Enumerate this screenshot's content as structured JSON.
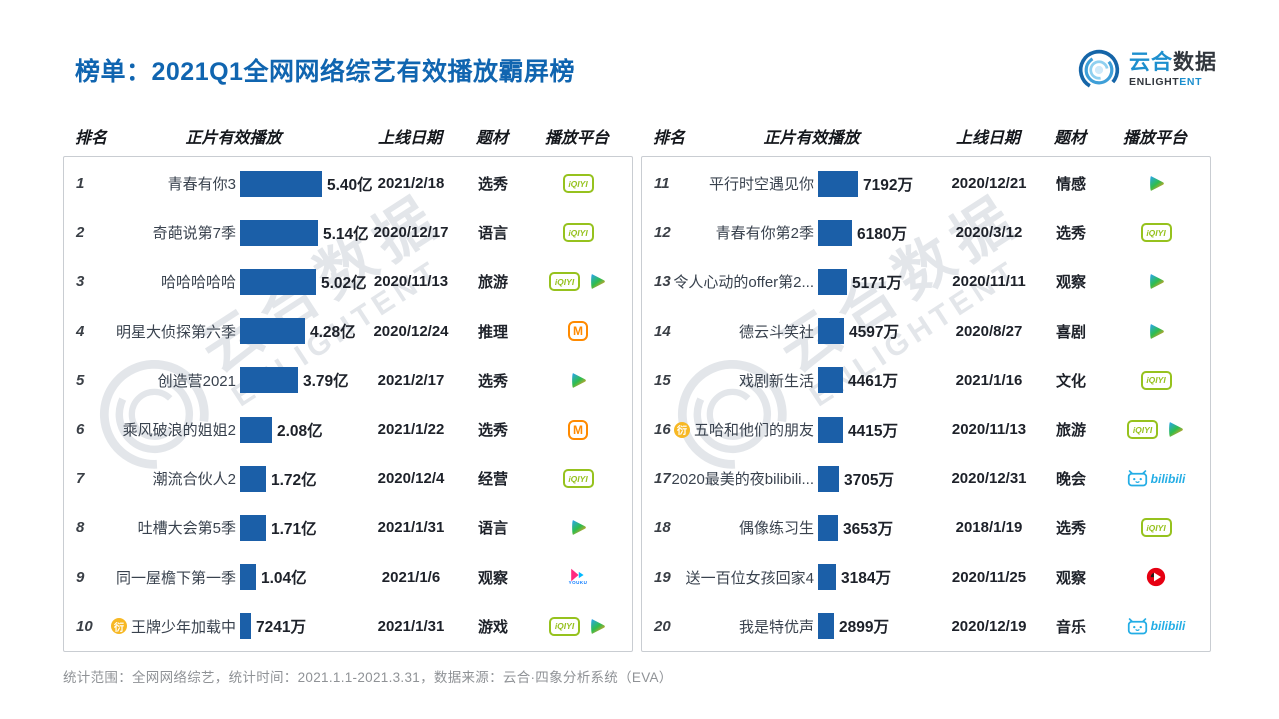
{
  "title": "榜单：2021Q1全网网络综艺有效播放霸屏榜",
  "footer": "统计范围：全网网络综艺，统计时间：2021.1.1-2021.3.31，数据来源：云合·四象分析系统（EVA）",
  "logo": {
    "cn_blue": "云合",
    "cn_dark": "数据",
    "en_dark": "ENLIGHT",
    "en_blue": "ENT"
  },
  "watermark": {
    "cn": "云合数据",
    "en": "ENLIGHTENT"
  },
  "columns": [
    "排名",
    "正片有效播放",
    "上线日期",
    "题材",
    "播放平台"
  ],
  "colors": {
    "title_blue": "#1065b0",
    "bar_blue": "#1b5fa8",
    "iqiyi_green": "#96c21e",
    "mgtv_orange": "#ff8a00",
    "youku_pink": "#ff2a7f",
    "bilibili_blue": "#23ade5",
    "badge_yellow": "#f7b824",
    "red_play": "#e60012",
    "watermark_gray": "#e3e6ea"
  },
  "chart_data": {
    "type": "bar",
    "title": "2021Q1全网网络综艺有效播放霸屏榜",
    "value_unit": "万 (1亿 = 10000万)",
    "panels": [
      {
        "rows": [
          {
            "rank": "1",
            "badge": "",
            "name": "青春有你3",
            "value_label": "5.40亿",
            "value_wan": 54000,
            "date": "2021/2/18",
            "genre": "选秀",
            "platforms": [
              "iqiyi"
            ]
          },
          {
            "rank": "2",
            "badge": "",
            "name": "奇葩说第7季",
            "value_label": "5.14亿",
            "value_wan": 51400,
            "date": "2020/12/17",
            "genre": "语言",
            "platforms": [
              "iqiyi"
            ]
          },
          {
            "rank": "3",
            "badge": "",
            "name": "哈哈哈哈哈",
            "value_label": "5.02亿",
            "value_wan": 50200,
            "date": "2020/11/13",
            "genre": "旅游",
            "platforms": [
              "iqiyi",
              "tencent"
            ]
          },
          {
            "rank": "4",
            "badge": "",
            "name": "明星大侦探第六季",
            "value_label": "4.28亿",
            "value_wan": 42800,
            "date": "2020/12/24",
            "genre": "推理",
            "platforms": [
              "mgtv"
            ]
          },
          {
            "rank": "5",
            "badge": "",
            "name": "创造营2021",
            "value_label": "3.79亿",
            "value_wan": 37900,
            "date": "2021/2/17",
            "genre": "选秀",
            "platforms": [
              "tencent"
            ]
          },
          {
            "rank": "6",
            "badge": "",
            "name": "乘风破浪的姐姐2",
            "value_label": "2.08亿",
            "value_wan": 20800,
            "date": "2021/1/22",
            "genre": "选秀",
            "platforms": [
              "mgtv"
            ]
          },
          {
            "rank": "7",
            "badge": "",
            "name": "潮流合伙人2",
            "value_label": "1.72亿",
            "value_wan": 17200,
            "date": "2020/12/4",
            "genre": "经营",
            "platforms": [
              "iqiyi"
            ]
          },
          {
            "rank": "8",
            "badge": "",
            "name": "吐槽大会第5季",
            "value_label": "1.71亿",
            "value_wan": 17100,
            "date": "2021/1/31",
            "genre": "语言",
            "platforms": [
              "tencent"
            ]
          },
          {
            "rank": "9",
            "badge": "",
            "name": "同一屋檐下第一季",
            "value_label": "1.04亿",
            "value_wan": 10400,
            "date": "2021/1/6",
            "genre": "观察",
            "platforms": [
              "youku"
            ]
          },
          {
            "rank": "10",
            "badge": "衍",
            "name": "王牌少年加载中",
            "value_label": "7241万",
            "value_wan": 7241,
            "date": "2021/1/31",
            "genre": "游戏",
            "platforms": [
              "iqiyi",
              "tencent"
            ]
          }
        ]
      },
      {
        "rows": [
          {
            "rank": "11",
            "badge": "",
            "name": "平行时空遇见你",
            "value_label": "7192万",
            "value_wan": 7192,
            "date": "2020/12/21",
            "genre": "情感",
            "platforms": [
              "tencent"
            ]
          },
          {
            "rank": "12",
            "badge": "",
            "name": "青春有你第2季",
            "value_label": "6180万",
            "value_wan": 6180,
            "date": "2020/3/12",
            "genre": "选秀",
            "platforms": [
              "iqiyi"
            ]
          },
          {
            "rank": "13",
            "badge": "",
            "name": "令人心动的offer第2...",
            "value_label": "5171万",
            "value_wan": 5171,
            "date": "2020/11/11",
            "genre": "观察",
            "platforms": [
              "tencent"
            ]
          },
          {
            "rank": "14",
            "badge": "",
            "name": "德云斗笑社",
            "value_label": "4597万",
            "value_wan": 4597,
            "date": "2020/8/27",
            "genre": "喜剧",
            "platforms": [
              "tencent"
            ]
          },
          {
            "rank": "15",
            "badge": "",
            "name": "戏剧新生活",
            "value_label": "4461万",
            "value_wan": 4461,
            "date": "2021/1/16",
            "genre": "文化",
            "platforms": [
              "iqiyi"
            ]
          },
          {
            "rank": "16",
            "badge": "衍",
            "name": "五哈和他们的朋友",
            "value_label": "4415万",
            "value_wan": 4415,
            "date": "2020/11/13",
            "genre": "旅游",
            "platforms": [
              "iqiyi",
              "tencent"
            ]
          },
          {
            "rank": "17",
            "badge": "",
            "name": "2020最美的夜bilibili...",
            "value_label": "3705万",
            "value_wan": 3705,
            "date": "2020/12/31",
            "genre": "晚会",
            "platforms": [
              "bilibili"
            ]
          },
          {
            "rank": "18",
            "badge": "",
            "name": "偶像练习生",
            "value_label": "3653万",
            "value_wan": 3653,
            "date": "2018/1/19",
            "genre": "选秀",
            "platforms": [
              "iqiyi"
            ]
          },
          {
            "rank": "19",
            "badge": "",
            "name": "送一百位女孩回家4",
            "value_label": "3184万",
            "value_wan": 3184,
            "date": "2020/11/25",
            "genre": "观察",
            "platforms": [
              "redplay"
            ]
          },
          {
            "rank": "20",
            "badge": "",
            "name": "我是特优声",
            "value_label": "2899万",
            "value_wan": 2899,
            "date": "2020/12/19",
            "genre": "音乐",
            "platforms": [
              "bilibili"
            ]
          }
        ]
      }
    ]
  }
}
